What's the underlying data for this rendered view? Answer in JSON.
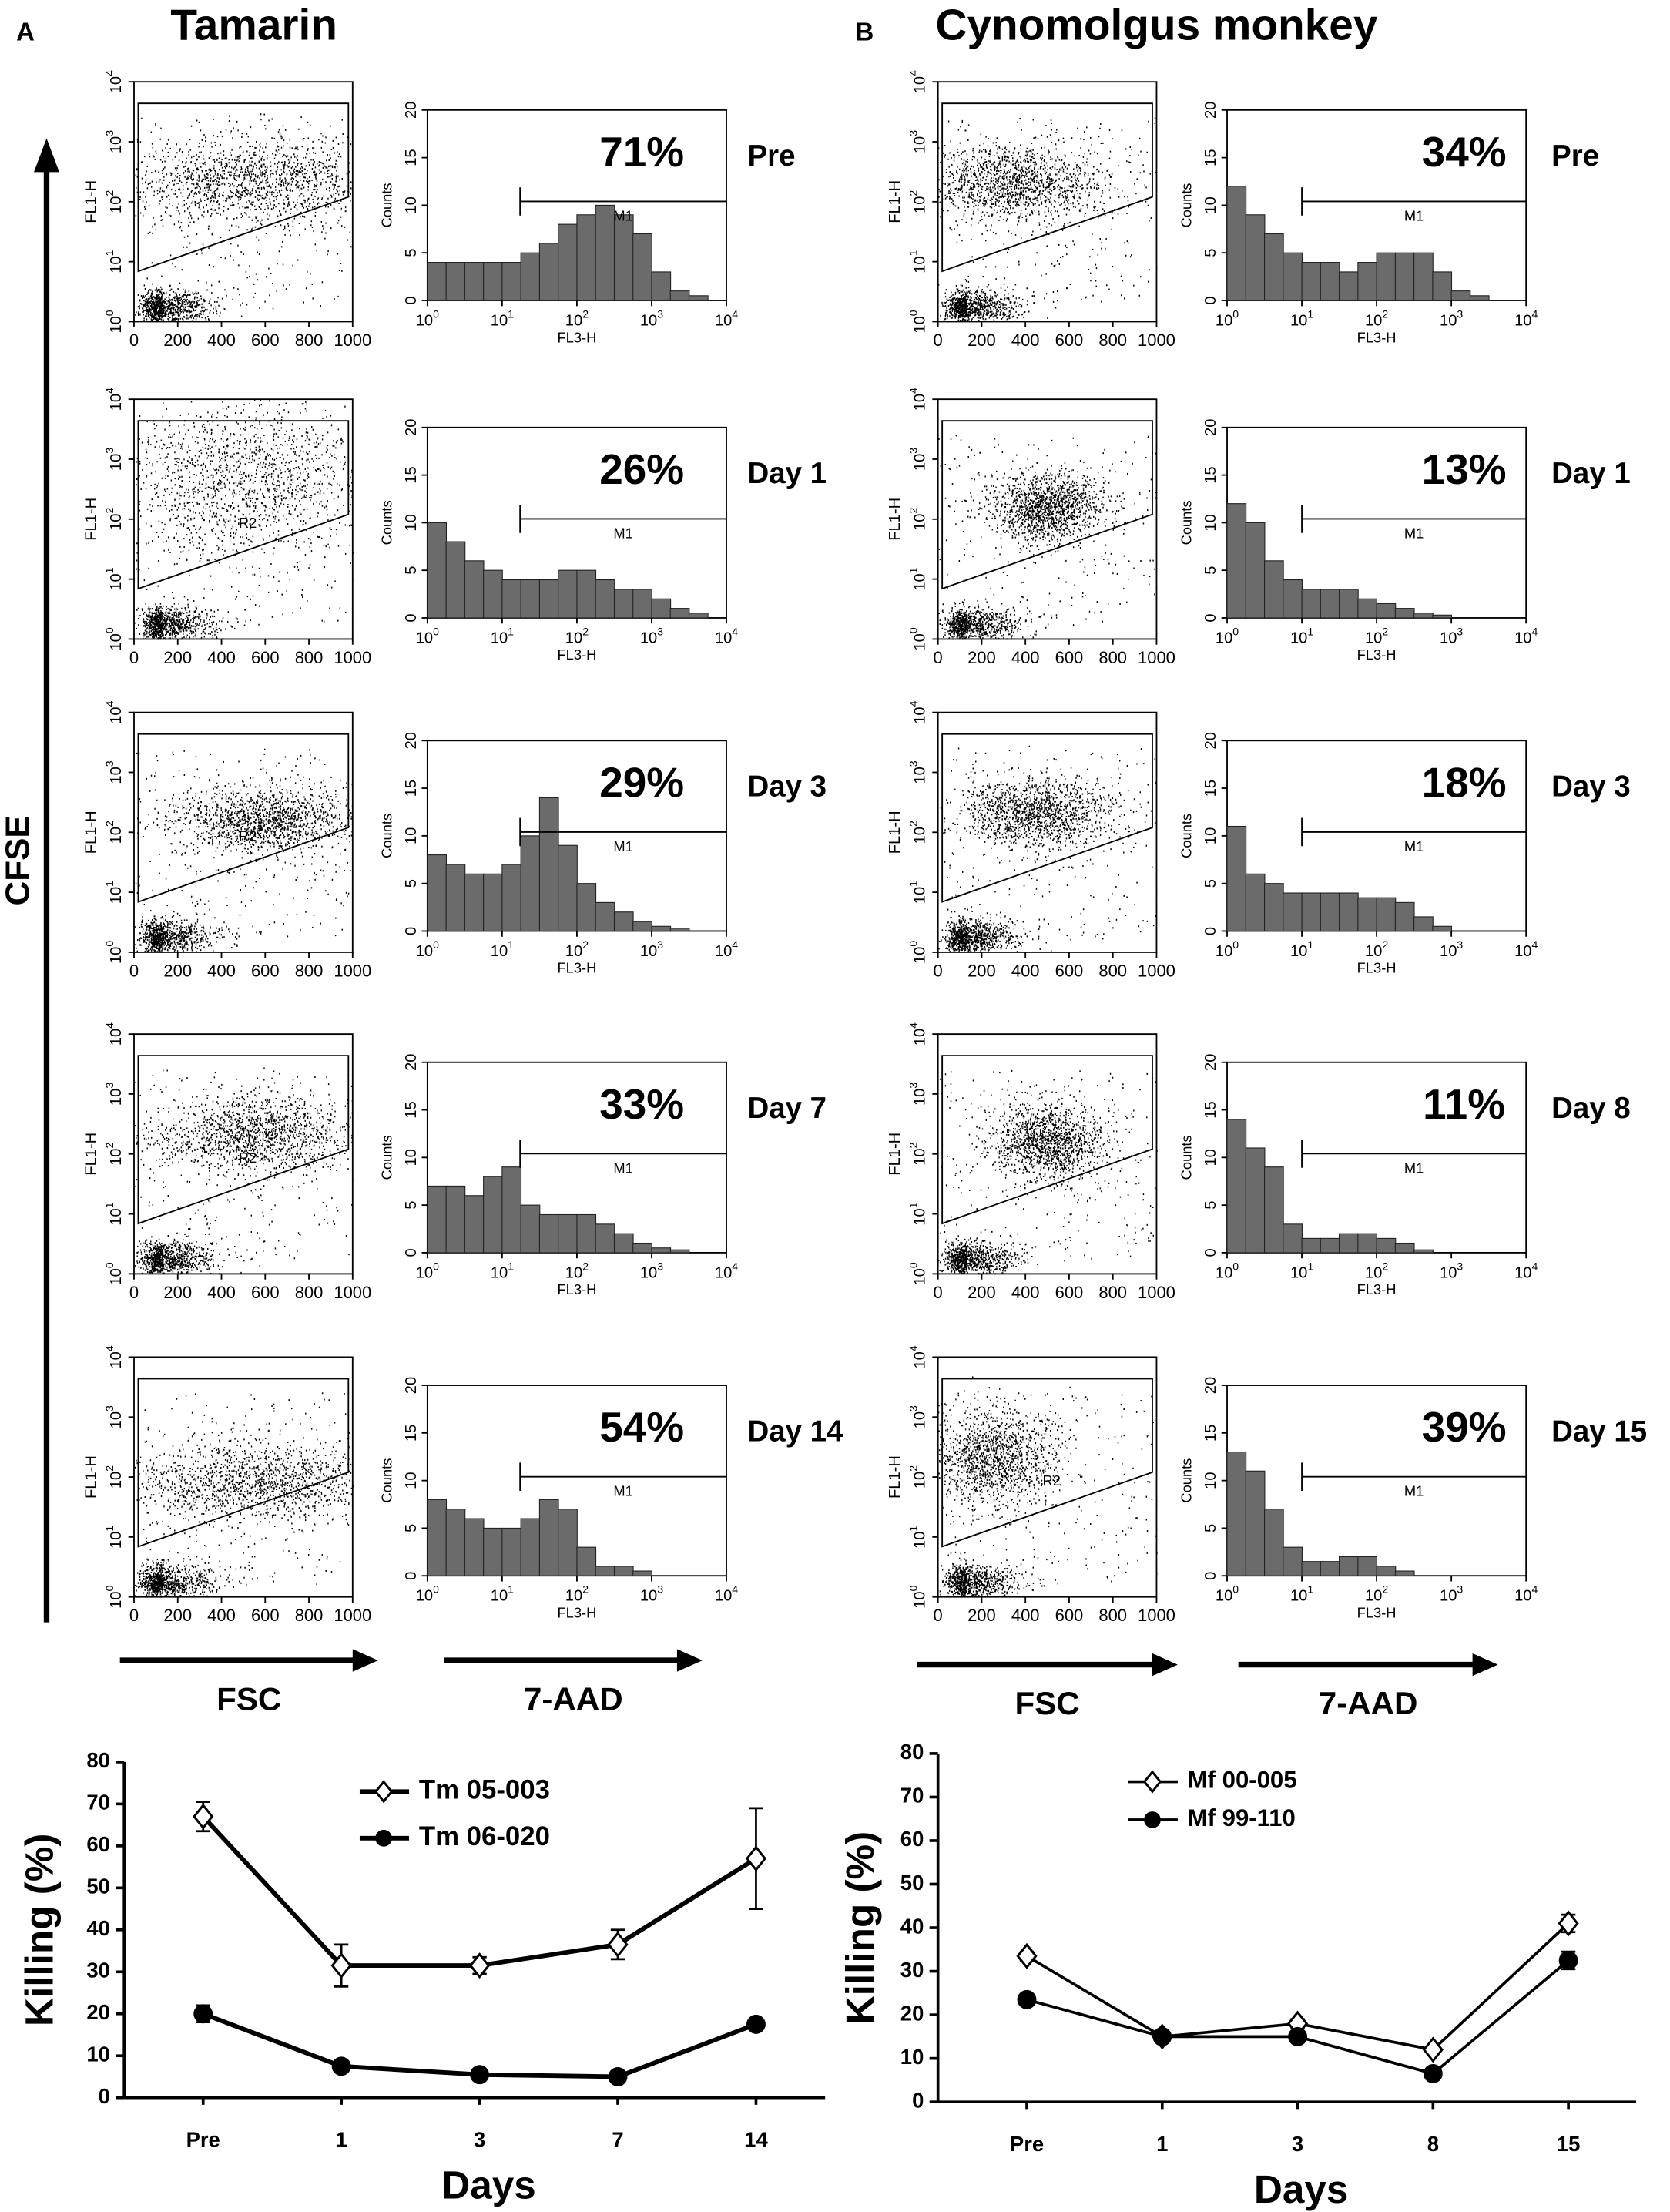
{
  "figure": {
    "y_arrow_label": "CFSE",
    "dot_ylabel": "FL1-H",
    "hist_xlabel": "FL3-H",
    "hist_ylabel": "Counts",
    "gate_label": "M1",
    "dot_xlim": [
      0,
      1000
    ],
    "dot_xticks": [
      0,
      200,
      400,
      600,
      800,
      1000
    ],
    "log_ticks": [
      {
        "base": "10",
        "exp": "0"
      },
      {
        "base": "10",
        "exp": "1"
      },
      {
        "base": "10",
        "exp": "2"
      },
      {
        "base": "10",
        "exp": "3"
      },
      {
        "base": "10",
        "exp": "4"
      }
    ],
    "hist_ylim": [
      0,
      20
    ],
    "hist_yticks": [
      0,
      5,
      10,
      15,
      20
    ]
  },
  "panels": [
    {
      "letter": "A",
      "title": "Tamarin",
      "x_arrow_labels": [
        "FSC",
        "7-AAD"
      ],
      "rows": [
        {
          "label": "Pre",
          "percent": "71%",
          "counts": [
            4,
            4,
            4,
            4,
            4,
            5,
            6,
            8,
            9,
            10,
            9,
            7,
            3,
            1,
            0.5,
            0
          ]
        },
        {
          "label": "Day 1",
          "percent": "26%",
          "region_label": "R2",
          "counts": [
            10,
            8,
            6,
            5,
            4,
            4,
            4,
            5,
            5,
            4,
            3,
            3,
            2,
            1,
            0.5,
            0
          ]
        },
        {
          "label": "Day 3",
          "percent": "29%",
          "region_label": "R2",
          "counts": [
            8,
            7,
            6,
            6,
            7,
            10,
            14,
            9,
            5,
            3,
            2,
            1,
            0.5,
            0.3,
            0,
            0
          ]
        },
        {
          "label": "Day 7",
          "percent": "33%",
          "region_label": "R2",
          "counts": [
            7,
            7,
            6,
            8,
            9,
            5,
            4,
            4,
            4,
            3,
            2,
            1,
            0.5,
            0.3,
            0,
            0
          ]
        },
        {
          "label": "Day 14",
          "percent": "54%",
          "counts": [
            8,
            7,
            6,
            5,
            5,
            6,
            8,
            7,
            3,
            1,
            1,
            0.5,
            0,
            0,
            0,
            0
          ]
        }
      ]
    },
    {
      "letter": "B",
      "title": "Cynomolgus monkey",
      "x_arrow_labels": [
        "FSC",
        "7-AAD"
      ],
      "rows": [
        {
          "label": "Pre",
          "percent": "34%",
          "counts": [
            12,
            9,
            7,
            5,
            4,
            4,
            3,
            4,
            5,
            5,
            5,
            3,
            1,
            0.5,
            0,
            0
          ]
        },
        {
          "label": "Day 1",
          "percent": "13%",
          "counts": [
            12,
            10,
            6,
            4,
            3,
            3,
            3,
            2,
            1.5,
            1,
            0.5,
            0.3,
            0,
            0,
            0,
            0
          ]
        },
        {
          "label": "Day 3",
          "percent": "18%",
          "counts": [
            11,
            6,
            5,
            4,
            4,
            4,
            4,
            3.5,
            3.5,
            3,
            1.5,
            0.5,
            0,
            0,
            0,
            0
          ]
        },
        {
          "label": "Day 8",
          "percent": "11%",
          "counts": [
            14,
            11,
            9,
            3,
            1.5,
            1.5,
            2,
            2,
            1.5,
            1,
            0.3,
            0,
            0,
            0,
            0,
            0
          ]
        },
        {
          "label": "Day 15",
          "percent": "39%",
          "region_label": "R2",
          "counts": [
            13,
            11,
            7,
            3,
            1.5,
            1.5,
            2,
            2,
            1,
            0.5,
            0,
            0,
            0,
            0,
            0,
            0
          ]
        }
      ]
    }
  ],
  "chart_data": [
    {
      "type": "line",
      "ylabel": "Killing (%)",
      "xlabel": "Days",
      "categories": [
        "Pre",
        "1",
        "3",
        "7",
        "14"
      ],
      "ylim": [
        0,
        80
      ],
      "yticks": [
        0,
        10,
        20,
        30,
        40,
        50,
        60,
        70,
        80
      ],
      "legend": "upper center",
      "series": [
        {
          "name": "Tm 05-003",
          "color": "#000000",
          "marker": "diamond-open",
          "values": [
            67,
            31.5,
            31.5,
            36.5,
            57
          ],
          "errors": [
            3.5,
            5,
            2,
            3.5,
            12
          ]
        },
        {
          "name": "Tm 06-020",
          "color": "#000000",
          "marker": "circle-filled",
          "values": [
            20,
            7.5,
            5.5,
            5,
            17.5
          ],
          "errors": [
            2,
            0.5,
            0.5,
            0.5,
            1
          ]
        }
      ]
    },
    {
      "type": "line",
      "ylabel": "Killing (%)",
      "xlabel": "Days",
      "categories": [
        "Pre",
        "1",
        "3",
        "8",
        "15"
      ],
      "ylim": [
        0,
        80
      ],
      "yticks": [
        0,
        10,
        20,
        30,
        40,
        50,
        60,
        70,
        80
      ],
      "legend": "upper left",
      "series": [
        {
          "name": "Mf 00-005",
          "color": "#000000",
          "marker": "diamond-open",
          "values": [
            33.5,
            15,
            18,
            12,
            41
          ],
          "errors": [
            1,
            0.5,
            1,
            0.5,
            2
          ]
        },
        {
          "name": "Mf 99-110",
          "color": "#000000",
          "marker": "circle-filled",
          "values": [
            23.5,
            15,
            15,
            6.5,
            32.5
          ],
          "errors": [
            1,
            1,
            1,
            0.5,
            2
          ]
        }
      ]
    }
  ]
}
